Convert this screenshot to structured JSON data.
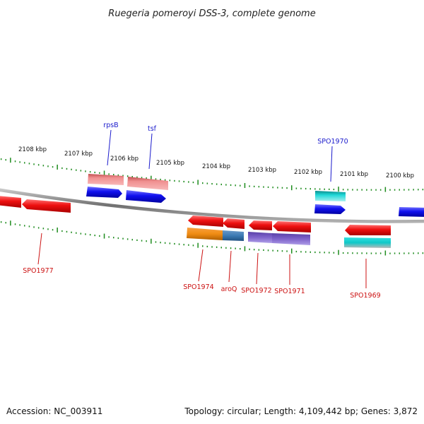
{
  "title": "Ruegeria pomeroyi DSS-3, complete genome",
  "footer": {
    "accession": "Accession: NC_003911",
    "topology": "Topology: circular; Length: 4,109,442 bp; Genes: 3,872"
  },
  "kbp_labels": [
    "2108 kbp",
    "2107 kbp",
    "2106 kbp",
    "2105 kbp",
    "2104 kbp",
    "2103 kbp",
    "2102 kbp",
    "2101 kbp",
    "2100 kbp"
  ],
  "top_labels": [
    "rpsB",
    "tsf",
    "SPO1970"
  ],
  "bottom_labels": [
    "SPO1977",
    "SPO1974",
    "aroQ",
    "SPO1972",
    "SPO1971",
    "SPO1969"
  ],
  "colors": {
    "red": "#e81010",
    "blue": "#1414e0",
    "pink": "#ee8888",
    "cyan": "#10c8c8",
    "orange": "#f08c14",
    "steelblue": "#3c7ab4",
    "purple": "#8064cc",
    "backbone": "#888888",
    "tick": "#1e8c1e"
  }
}
